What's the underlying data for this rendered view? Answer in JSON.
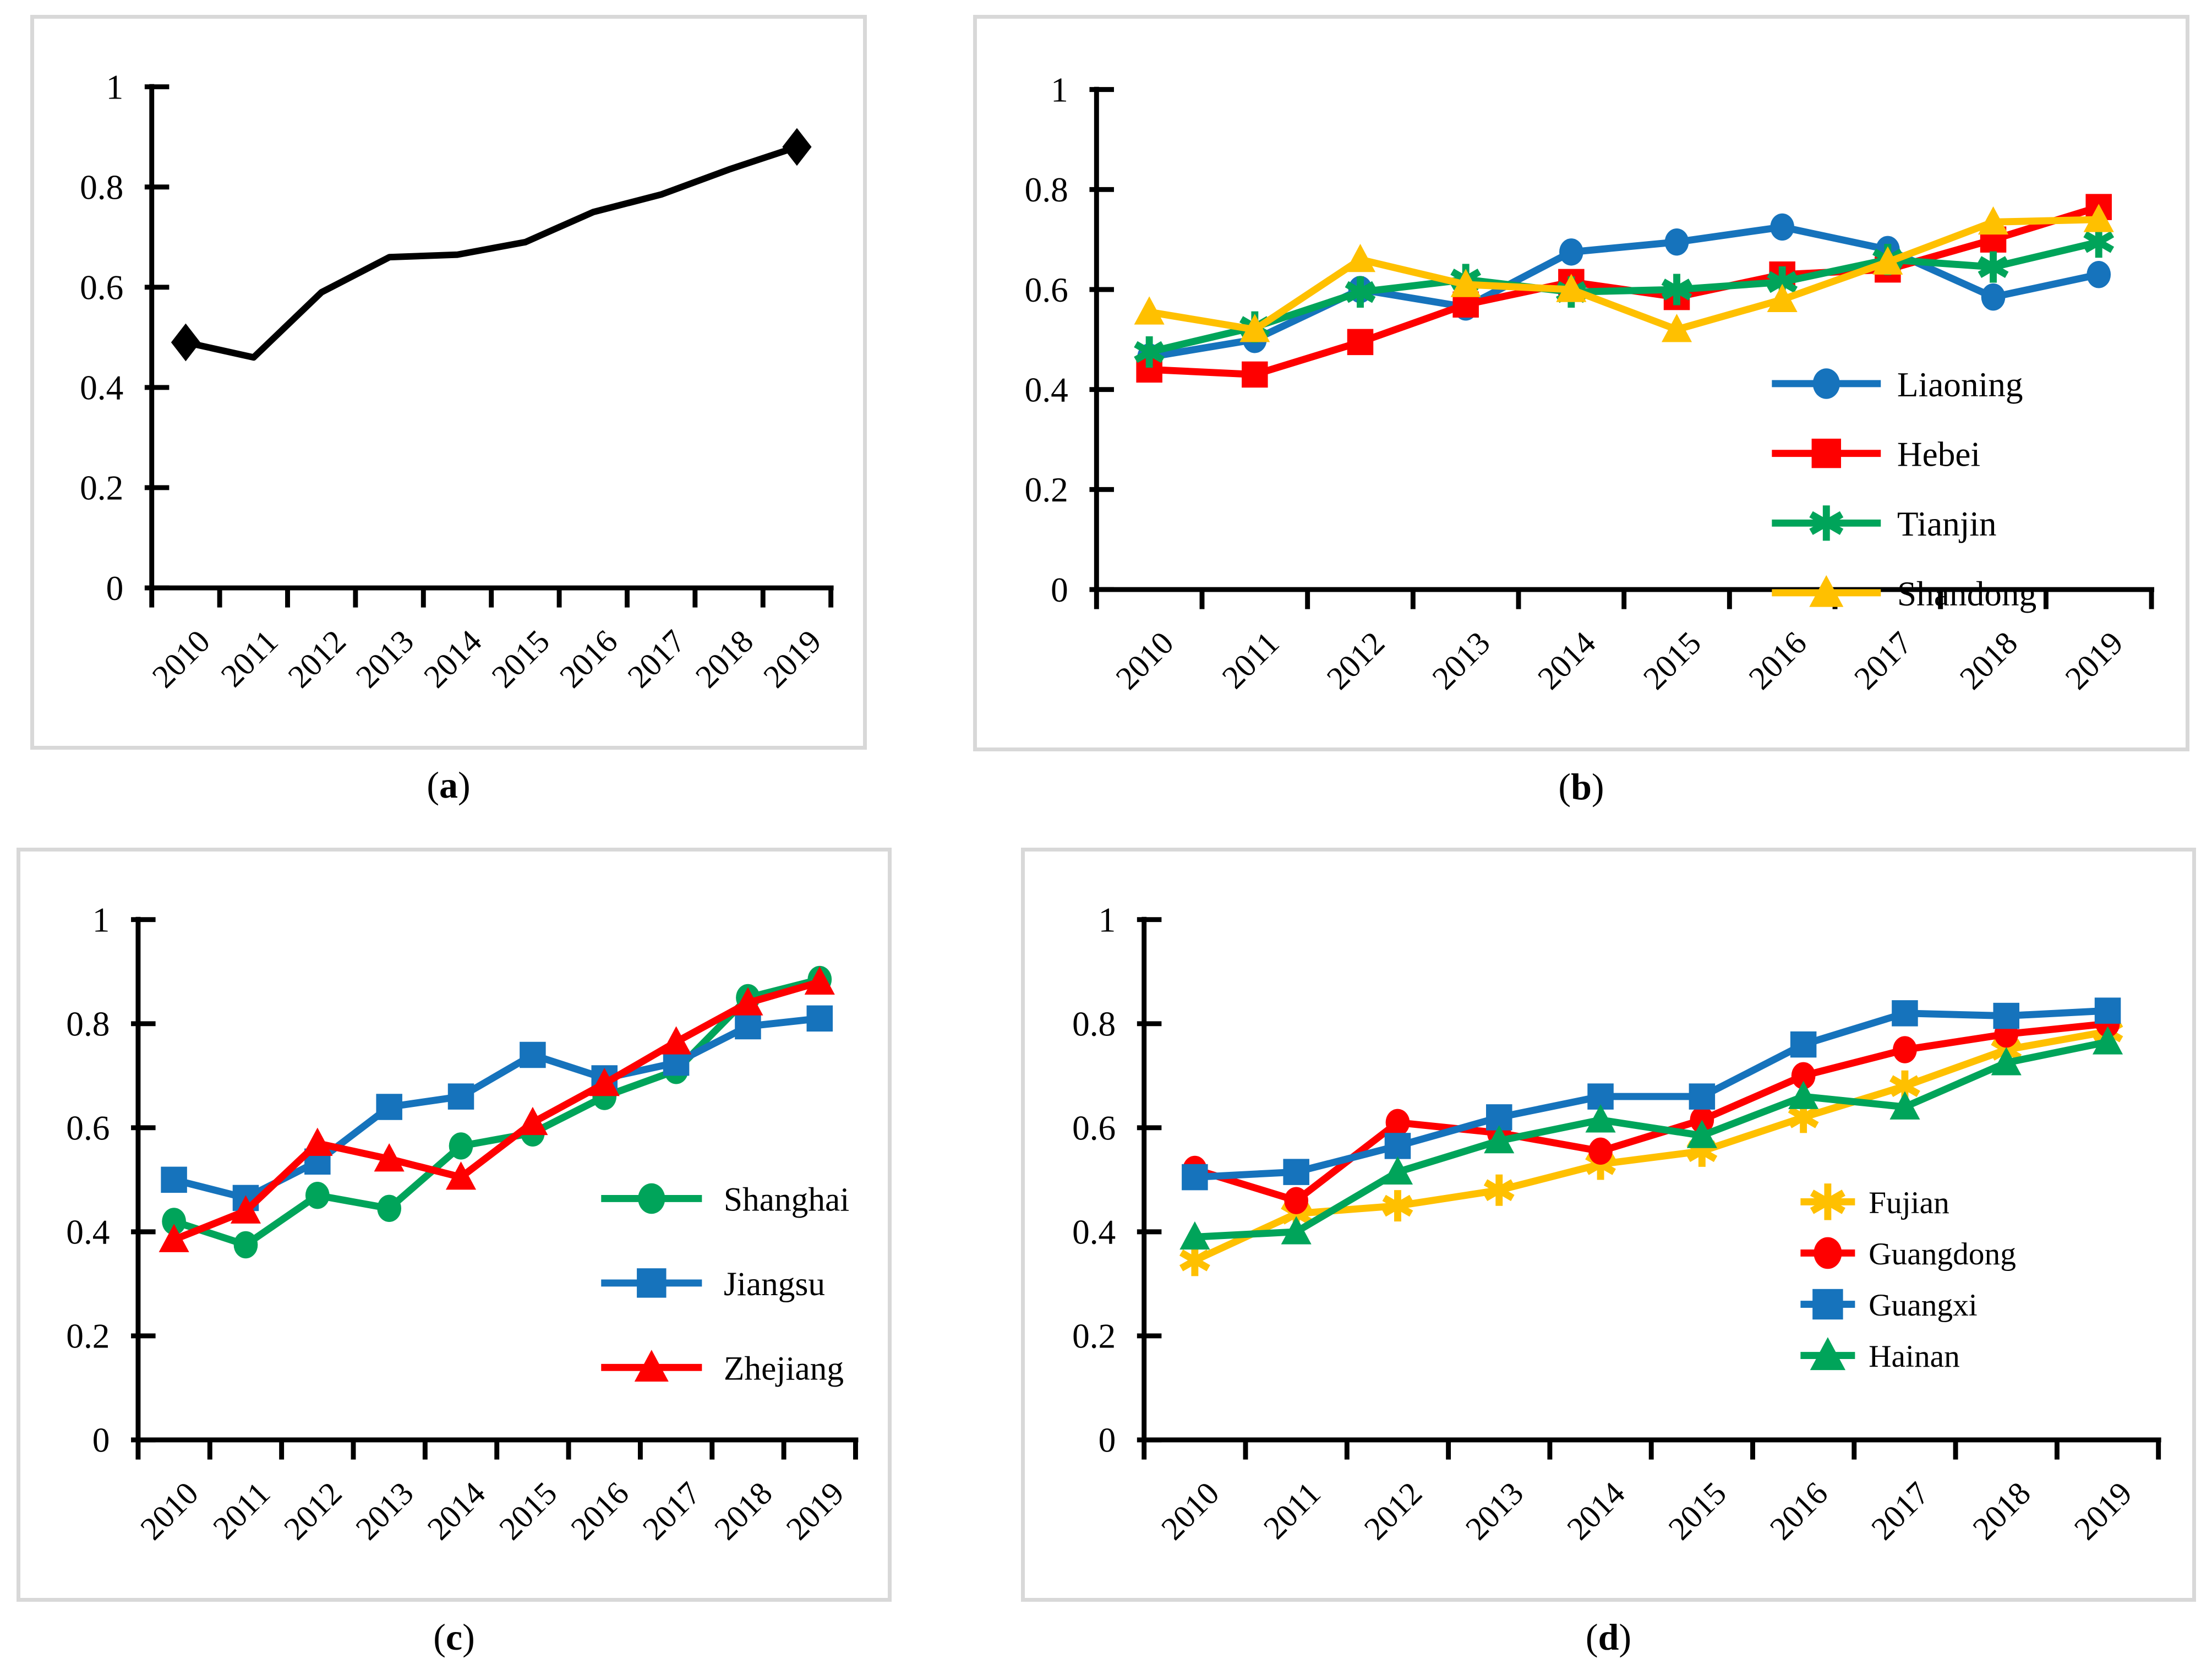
{
  "palette": {
    "black": "#000000",
    "blue": "#1673BC",
    "red": "#FE0000",
    "green": "#00A45A",
    "yellow": "#FFC000",
    "panel_border": "#D8D8D8",
    "text": "#000000"
  },
  "chart_data": [
    {
      "id": "a",
      "type": "line",
      "caption_open": "(",
      "caption_letter": "a",
      "caption_close": ")",
      "title": "",
      "xlabel": "",
      "ylabel": "",
      "x_categories": [
        "2010",
        "2011",
        "2012",
        "2013",
        "2014",
        "2015",
        "2016",
        "2017",
        "2018",
        "2019"
      ],
      "ylim": [
        0,
        1
      ],
      "ytick_labels": [
        "0",
        "0.2",
        "0.4",
        "0.6",
        "0.8",
        "1"
      ],
      "grid": "off",
      "legend_position": "none",
      "series": [
        {
          "name": "",
          "color": "#000000",
          "marker": "diamond",
          "marker_indices": [
            0,
            9
          ],
          "values": [
            0.49,
            0.46,
            0.59,
            0.66,
            0.665,
            0.69,
            0.75,
            0.785,
            0.835,
            0.88
          ]
        }
      ]
    },
    {
      "id": "b",
      "type": "line",
      "caption_open": "(",
      "caption_letter": "b",
      "caption_close": ")",
      "title": "",
      "xlabel": "",
      "ylabel": "",
      "x_categories": [
        "2010",
        "2011",
        "2012",
        "2013",
        "2014",
        "2015",
        "2016",
        "2017",
        "2018",
        "2019"
      ],
      "ylim": [
        0,
        1
      ],
      "ytick_labels": [
        "0",
        "0.2",
        "0.4",
        "0.6",
        "0.8",
        "1"
      ],
      "grid": "off",
      "legend_position": "inside-right",
      "series": [
        {
          "name": "Liaoning",
          "color": "#1673BC",
          "marker": "circle",
          "values": [
            0.465,
            0.5,
            0.6,
            0.565,
            0.675,
            0.695,
            0.725,
            0.68,
            0.585,
            0.63
          ]
        },
        {
          "name": "Hebei",
          "color": "#FE0000",
          "marker": "square",
          "values": [
            0.44,
            0.43,
            0.495,
            0.57,
            0.615,
            0.585,
            0.63,
            0.64,
            0.7,
            0.765
          ]
        },
        {
          "name": "Tianjin",
          "color": "#00A45A",
          "marker": "asterisk",
          "values": [
            0.475,
            0.525,
            0.595,
            0.62,
            0.595,
            0.6,
            0.615,
            0.66,
            0.645,
            0.695
          ]
        },
        {
          "name": "Shandong",
          "color": "#FFC000",
          "marker": "triangle",
          "values": [
            0.555,
            0.52,
            0.66,
            0.61,
            0.6,
            0.52,
            0.58,
            0.655,
            0.735,
            0.74
          ]
        }
      ]
    },
    {
      "id": "c",
      "type": "line",
      "caption_open": "(",
      "caption_letter": "c",
      "caption_close": ")",
      "title": "",
      "xlabel": "",
      "ylabel": "",
      "x_categories": [
        "2010",
        "2011",
        "2012",
        "2013",
        "2014",
        "2015",
        "2016",
        "2017",
        "2018",
        "2019"
      ],
      "ylim": [
        0,
        1
      ],
      "ytick_labels": [
        "0",
        "0.2",
        "0.4",
        "0.6",
        "0.8",
        "1"
      ],
      "grid": "off",
      "legend_position": "inside-right",
      "series": [
        {
          "name": "Shanghai",
          "color": "#00A45A",
          "marker": "circle",
          "values": [
            0.42,
            0.375,
            0.47,
            0.445,
            0.565,
            0.59,
            0.66,
            0.71,
            0.85,
            0.885
          ]
        },
        {
          "name": "Jiangsu",
          "color": "#1673BC",
          "marker": "square",
          "values": [
            0.5,
            0.465,
            0.535,
            0.64,
            0.66,
            0.74,
            0.695,
            0.725,
            0.795,
            0.81
          ]
        },
        {
          "name": "Zhejiang",
          "color": "#FE0000",
          "marker": "triangle",
          "values": [
            0.385,
            0.44,
            0.57,
            0.54,
            0.505,
            0.61,
            0.685,
            0.765,
            0.84,
            0.88
          ]
        }
      ]
    },
    {
      "id": "d",
      "type": "line",
      "caption_open": "(",
      "caption_letter": "d",
      "caption_close": ")",
      "title": "",
      "xlabel": "",
      "ylabel": "",
      "x_categories": [
        "2010",
        "2011",
        "2012",
        "2013",
        "2014",
        "2015",
        "2016",
        "2017",
        "2018",
        "2019"
      ],
      "ylim": [
        0,
        1
      ],
      "ytick_labels": [
        "0",
        "0.2",
        "0.4",
        "0.6",
        "0.8",
        "1"
      ],
      "grid": "off",
      "legend_position": "inside-right",
      "series": [
        {
          "name": "Fujian",
          "color": "#FFC000",
          "marker": "asterisk",
          "values": [
            0.345,
            0.435,
            0.45,
            0.48,
            0.53,
            0.555,
            0.62,
            0.68,
            0.75,
            0.785
          ]
        },
        {
          "name": "Guangdong",
          "color": "#FE0000",
          "marker": "circle",
          "values": [
            0.52,
            0.46,
            0.61,
            0.59,
            0.555,
            0.615,
            0.7,
            0.75,
            0.78,
            0.8
          ]
        },
        {
          "name": "Guangxi",
          "color": "#1673BC",
          "marker": "square",
          "values": [
            0.505,
            0.515,
            0.565,
            0.62,
            0.66,
            0.66,
            0.76,
            0.82,
            0.815,
            0.825
          ]
        },
        {
          "name": "Hainan",
          "color": "#00A45A",
          "marker": "triangle",
          "values": [
            0.39,
            0.4,
            0.515,
            0.575,
            0.615,
            0.585,
            0.66,
            0.64,
            0.725,
            0.765
          ]
        }
      ]
    }
  ]
}
